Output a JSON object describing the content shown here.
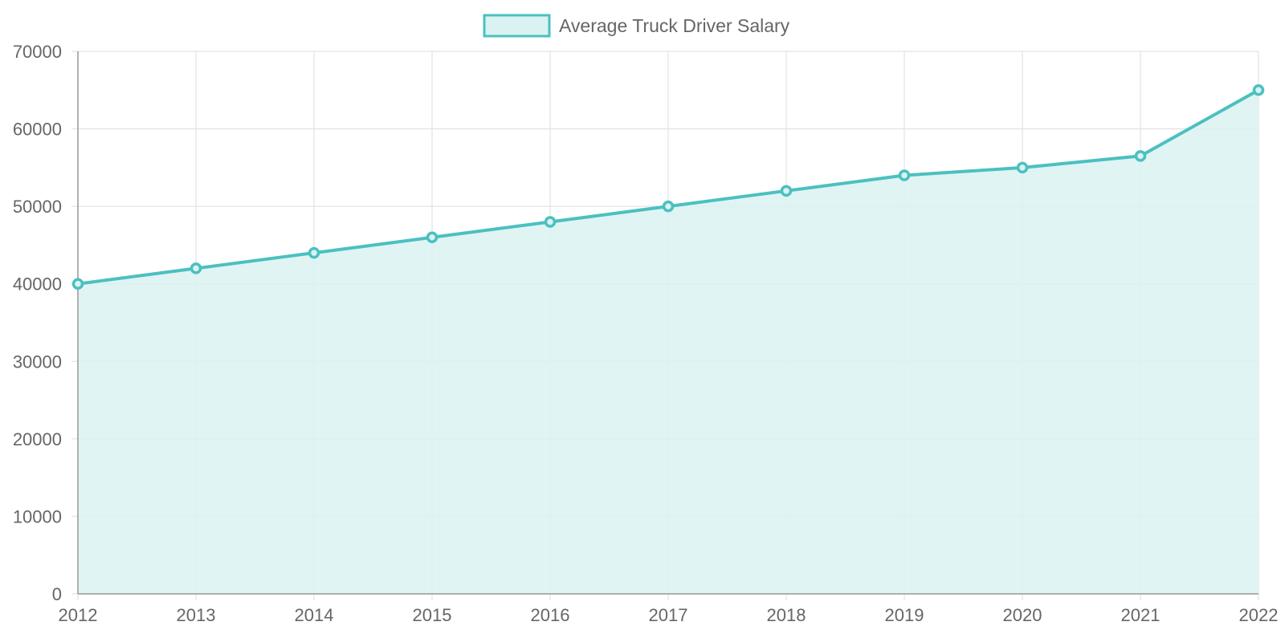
{
  "chart_data": {
    "type": "area",
    "x": [
      "2012",
      "2013",
      "2014",
      "2015",
      "2016",
      "2017",
      "2018",
      "2019",
      "2020",
      "2021",
      "2022"
    ],
    "series": [
      {
        "name": "Average Truck Driver Salary",
        "values": [
          40000,
          42000,
          44000,
          46000,
          48000,
          50000,
          52000,
          54000,
          55000,
          56500,
          65000
        ]
      }
    ],
    "y_ticks": [
      "0",
      "10000",
      "20000",
      "30000",
      "40000",
      "50000",
      "60000",
      "70000"
    ],
    "ylim": [
      0,
      70000
    ],
    "grid": true,
    "legend_position": "top-center",
    "colors": {
      "line": "#4bc0c0",
      "fill": "#dbf2f2",
      "grid": "#e4e4e4",
      "axis": "#999999",
      "text": "#666666"
    }
  }
}
